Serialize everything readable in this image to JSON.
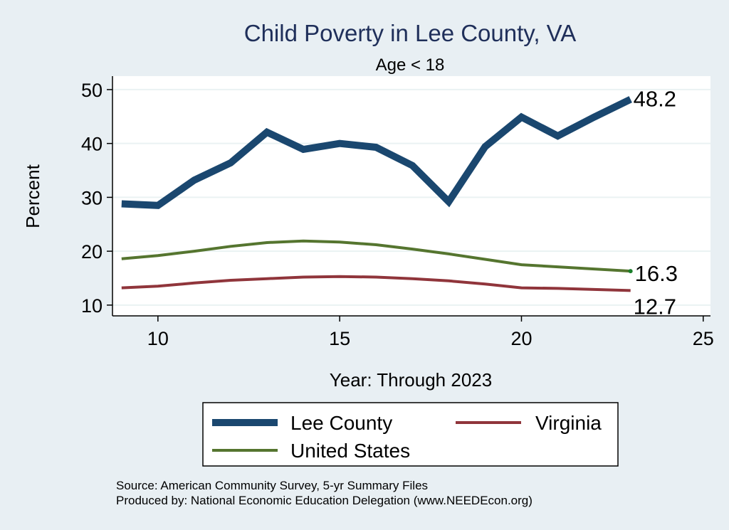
{
  "chart_data": {
    "type": "line",
    "title": "Child Poverty in Lee County, VA",
    "subtitle": "Age < 18",
    "xlabel": "Year: Through 2023",
    "ylabel": "Percent",
    "xlim": [
      8.75,
      25.2
    ],
    "ylim": [
      8.0,
      52.5
    ],
    "xticks": [
      "10",
      "15",
      "20",
      "25"
    ],
    "yticks": [
      "10",
      "20",
      "30",
      "40",
      "50"
    ],
    "grid": true,
    "legend_position": "bottom",
    "x": [
      9,
      10,
      11,
      12,
      13,
      14,
      15,
      16,
      17,
      18,
      19,
      20,
      21,
      22,
      23
    ],
    "series": [
      {
        "name": "Lee County",
        "color": "#1a476f",
        "values": [
          28.8,
          28.5,
          33.2,
          36.4,
          42.1,
          38.9,
          40.0,
          39.3,
          35.9,
          29.2,
          39.4,
          44.9,
          41.4,
          44.9,
          48.2
        ],
        "end_label": "48.2"
      },
      {
        "name": "Virginia",
        "color": "#90353b",
        "values": [
          13.2,
          13.5,
          14.1,
          14.6,
          14.9,
          15.2,
          15.3,
          15.2,
          14.9,
          14.5,
          13.9,
          13.2,
          13.1,
          12.9,
          12.7
        ],
        "end_label": "12.7"
      },
      {
        "name": "United States",
        "color": "#55752f",
        "values": [
          18.6,
          19.2,
          20.0,
          20.9,
          21.6,
          21.9,
          21.7,
          21.2,
          20.4,
          19.5,
          18.5,
          17.5,
          17.1,
          16.7,
          16.3
        ],
        "end_label": "16.3"
      }
    ]
  },
  "notes": {
    "source": "Source: American Community Survey, 5-yr Summary Files",
    "produced": "Produced by: National Economic Education Delegation (www.NEEDEcon.org)"
  }
}
